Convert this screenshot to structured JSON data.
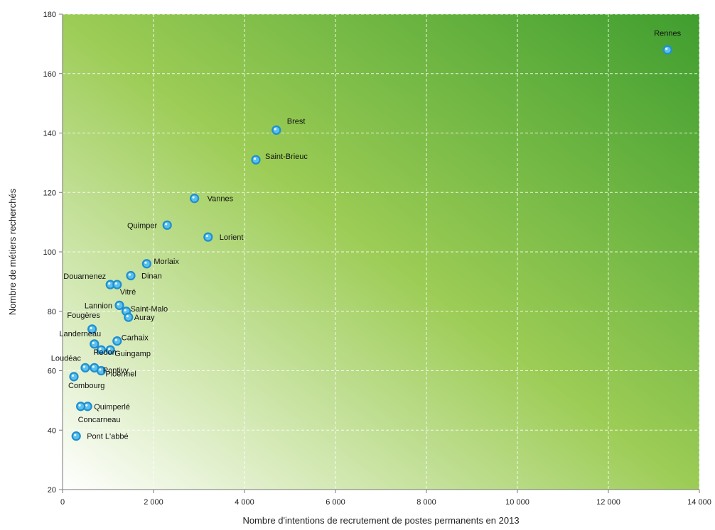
{
  "chart_data": {
    "type": "scatter",
    "title": "",
    "xlabel": "Nombre d'intentions de recrutement de postes permanents en 2013",
    "ylabel": "Nombre de métiers recherchés",
    "xlim": [
      0,
      14000
    ],
    "ylim": [
      20,
      180
    ],
    "x_ticks": [
      0,
      2000,
      4000,
      6000,
      8000,
      10000,
      12000,
      14000
    ],
    "x_tick_labels": [
      "0",
      "2 000",
      "4 000",
      "6 000",
      "8 000",
      "10 000",
      "12 000",
      "14 000"
    ],
    "y_ticks": [
      20,
      40,
      60,
      80,
      100,
      120,
      140,
      160,
      180
    ],
    "y_tick_labels": [
      "20",
      "40",
      "60",
      "80",
      "100",
      "120",
      "140",
      "160",
      "180"
    ],
    "grid": true,
    "background": "gradient white (bottom-left) to green (top-right)",
    "colors": {
      "gradient_light": "#ffffff",
      "gradient_mid": "#9ccc55",
      "gradient_dark": "#3f9e2f",
      "point_fill": "#5bc0ec",
      "point_stroke": "#1f8fcf"
    },
    "points": [
      {
        "label": "Rennes",
        "x": 13300,
        "y": 168
      },
      {
        "label": "Brest",
        "x": 4700,
        "y": 141
      },
      {
        "label": "Saint-Brieuc",
        "x": 4250,
        "y": 131
      },
      {
        "label": "Vannes",
        "x": 2900,
        "y": 118
      },
      {
        "label": "Quimper",
        "x": 2300,
        "y": 109
      },
      {
        "label": "Lorient",
        "x": 3200,
        "y": 105
      },
      {
        "label": "Morlaix",
        "x": 1850,
        "y": 96
      },
      {
        "label": "Dinan",
        "x": 1500,
        "y": 92
      },
      {
        "label": "Douarnenez",
        "x": 1050,
        "y": 89
      },
      {
        "label": "Vitré",
        "x": 1200,
        "y": 89
      },
      {
        "label": "Lannion",
        "x": 1250,
        "y": 82
      },
      {
        "label": "Saint-Malo",
        "x": 1400,
        "y": 80
      },
      {
        "label": "Auray",
        "x": 1450,
        "y": 78
      },
      {
        "label": "Fougères",
        "x": 650,
        "y": 74
      },
      {
        "label": "Carhaix",
        "x": 1200,
        "y": 70
      },
      {
        "label": "Landerneau",
        "x": 700,
        "y": 69
      },
      {
        "label": "Guingamp",
        "x": 1050,
        "y": 67
      },
      {
        "label": "Redon",
        "x": 850,
        "y": 67
      },
      {
        "label": "Loudéac",
        "x": 500,
        "y": 61
      },
      {
        "label": "Pontivy",
        "x": 700,
        "y": 61
      },
      {
        "label": "Ploërmel",
        "x": 850,
        "y": 60
      },
      {
        "label": "Combourg",
        "x": 250,
        "y": 58
      },
      {
        "label": "Quimperlé",
        "x": 550,
        "y": 48
      },
      {
        "label": "Concarneau",
        "x": 400,
        "y": 48
      },
      {
        "label": "Pont L'abbé",
        "x": 300,
        "y": 38
      }
    ]
  }
}
